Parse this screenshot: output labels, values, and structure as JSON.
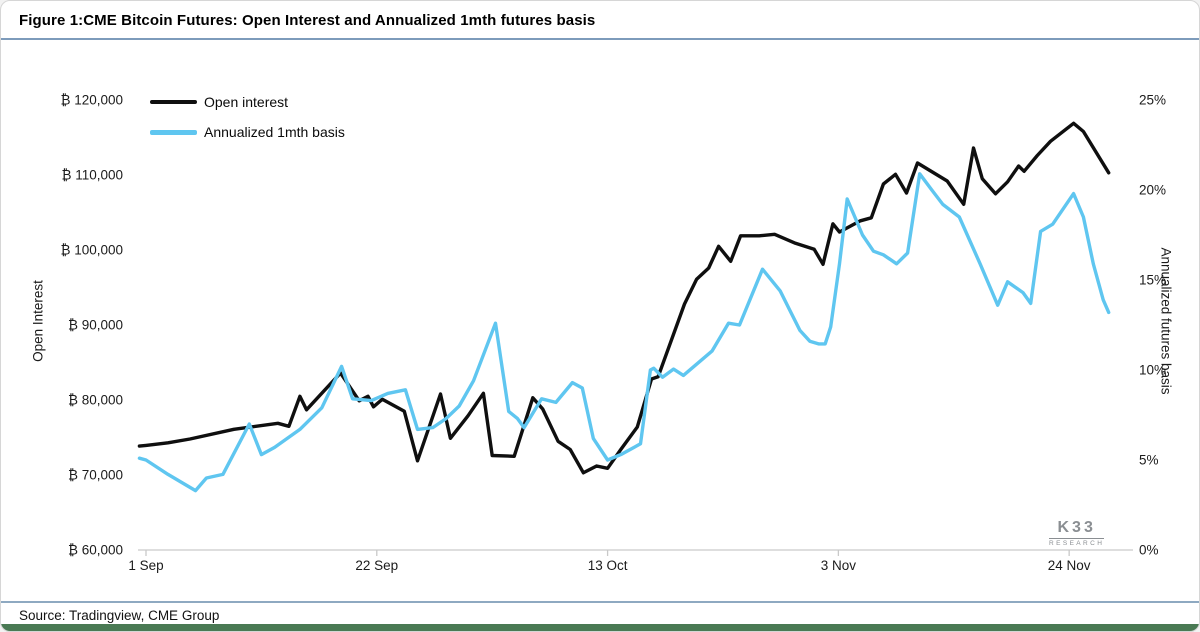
{
  "title": "Figure 1:CME Bitcoin Futures: Open Interest and Annualized 1mth futures basis",
  "source_note": "Source: Tradingview, CME Group",
  "branding": {
    "logo_text": "K33",
    "logo_subtext": "RESEARCH"
  },
  "legend": {
    "open_interest_label": "Open interest",
    "basis_label": "Annualized 1mth basis"
  },
  "colors": {
    "open_interest_line": "#0f0f0f",
    "basis_line": "#5fc6f0",
    "axis_line": "#c9c9c9",
    "title_rule": "#7d9bbb",
    "source_rule": "#8ea9c1",
    "footer_bar": "#4a7a54",
    "logo_gray": "#8a8e92",
    "tick_text": "#1b1b1b"
  },
  "chart_data": {
    "type": "line",
    "title": "CME Bitcoin Futures: Open Interest and Annualized 1mth futures basis",
    "grid": false,
    "legend_position": "top-left",
    "x_axis": {
      "unit": "date (days after 1 Sep)",
      "tick_labels": [
        "1 Sep",
        "22 Sep",
        "13 Oct",
        "3 Nov",
        "24 Nov"
      ],
      "tick_days": [
        0,
        21,
        42,
        63,
        84
      ],
      "range_days": [
        -0.6,
        87.6
      ]
    },
    "left_axis": {
      "label": "Open Interest",
      "min": 60000,
      "max": 120000,
      "tick_step": 10000,
      "ticks": [
        {
          "label": "₿ 120,000",
          "value": 120000
        },
        {
          "label": "₿ 110,000",
          "value": 110000
        },
        {
          "label": "₿ 100,000",
          "value": 100000
        },
        {
          "label": "₿ 90,000",
          "value": 90000
        },
        {
          "label": "₿ 80,000",
          "value": 80000
        },
        {
          "label": "₿ 70,000",
          "value": 70000
        },
        {
          "label": "₿ 60,000",
          "value": 60000
        }
      ]
    },
    "right_axis": {
      "label": "Annualized futures basis",
      "min": 0,
      "max": 25,
      "tick_step": 5,
      "ticks": [
        {
          "label": "25%",
          "value": 25
        },
        {
          "label": "20%",
          "value": 20
        },
        {
          "label": "15%",
          "value": 15
        },
        {
          "label": "10%",
          "value": 10
        },
        {
          "label": "5%",
          "value": 5
        },
        {
          "label": "0%",
          "value": 0
        }
      ]
    },
    "series": [
      {
        "name": "Open interest",
        "axis": "left",
        "unit": "BTC",
        "points": [
          [
            -0.6,
            73850
          ],
          [
            0,
            73950
          ],
          [
            2,
            74300
          ],
          [
            4,
            74800
          ],
          [
            8,
            76100
          ],
          [
            12,
            76900
          ],
          [
            13,
            76500
          ],
          [
            14,
            80500
          ],
          [
            14.6,
            78700
          ],
          [
            17.7,
            83600
          ],
          [
            19.4,
            79900
          ],
          [
            20.2,
            80500
          ],
          [
            20.7,
            79100
          ],
          [
            21.5,
            80100
          ],
          [
            23.5,
            78500
          ],
          [
            24.7,
            71900
          ],
          [
            26.8,
            80800
          ],
          [
            27.7,
            74900
          ],
          [
            29.3,
            77900
          ],
          [
            30.7,
            80900
          ],
          [
            31.5,
            72600
          ],
          [
            33.5,
            72500
          ],
          [
            35.2,
            80300
          ],
          [
            36.1,
            78800
          ],
          [
            37.5,
            74500
          ],
          [
            38.6,
            73400
          ],
          [
            39.8,
            70300
          ],
          [
            41,
            71200
          ],
          [
            42,
            70900
          ],
          [
            43.2,
            73400
          ],
          [
            44.7,
            76400
          ],
          [
            46,
            82800
          ],
          [
            46.6,
            83100
          ],
          [
            49,
            92800
          ],
          [
            50.1,
            96100
          ],
          [
            51.2,
            97600
          ],
          [
            52.1,
            100500
          ],
          [
            53.2,
            98500
          ],
          [
            54.1,
            101900
          ],
          [
            55.8,
            101900
          ],
          [
            57.2,
            102100
          ],
          [
            59.1,
            100900
          ],
          [
            60.8,
            100100
          ],
          [
            61.6,
            98100
          ],
          [
            62.5,
            103500
          ],
          [
            63.1,
            102400
          ],
          [
            65,
            103900
          ],
          [
            66,
            104300
          ],
          [
            67.1,
            108800
          ],
          [
            68.2,
            110100
          ],
          [
            69.2,
            107600
          ],
          [
            70.2,
            111600
          ],
          [
            71.1,
            110800
          ],
          [
            72.9,
            109200
          ],
          [
            74.4,
            106100
          ],
          [
            75.3,
            113600
          ],
          [
            76.1,
            109500
          ],
          [
            77.3,
            107500
          ],
          [
            78.4,
            109100
          ],
          [
            79.4,
            111200
          ],
          [
            79.9,
            110500
          ],
          [
            81.1,
            112600
          ],
          [
            82.3,
            114500
          ],
          [
            84.4,
            116900
          ],
          [
            85.3,
            115800
          ],
          [
            87.6,
            110300
          ]
        ]
      },
      {
        "name": "Annualized 1mth basis",
        "axis": "right",
        "unit": "%",
        "points": [
          [
            -0.6,
            5.1
          ],
          [
            0,
            5.0
          ],
          [
            2,
            4.2
          ],
          [
            4.5,
            3.3
          ],
          [
            5.5,
            4.0
          ],
          [
            7,
            4.2
          ],
          [
            9.4,
            7.0
          ],
          [
            10.5,
            5.3
          ],
          [
            11.7,
            5.7
          ],
          [
            14,
            6.7
          ],
          [
            16,
            7.9
          ],
          [
            17.8,
            10.2
          ],
          [
            18.8,
            8.4
          ],
          [
            20.5,
            8.3
          ],
          [
            22,
            8.7
          ],
          [
            23.6,
            8.9
          ],
          [
            24.7,
            6.7
          ],
          [
            26.1,
            6.8
          ],
          [
            27.3,
            7.3
          ],
          [
            28.5,
            8.0
          ],
          [
            29.8,
            9.4
          ],
          [
            31.8,
            12.6
          ],
          [
            33,
            7.7
          ],
          [
            33.8,
            7.3
          ],
          [
            34.4,
            6.8
          ],
          [
            36,
            8.4
          ],
          [
            37.3,
            8.2
          ],
          [
            38.8,
            9.3
          ],
          [
            39.7,
            9.0
          ],
          [
            40.7,
            6.2
          ],
          [
            42,
            5.0
          ],
          [
            43.2,
            5.3
          ],
          [
            45,
            5.9
          ],
          [
            45.9,
            10.0
          ],
          [
            46.2,
            10.1
          ],
          [
            47,
            9.6
          ],
          [
            48,
            10.05
          ],
          [
            48.9,
            9.7
          ],
          [
            51.5,
            11.05
          ],
          [
            53,
            12.6
          ],
          [
            54,
            12.5
          ],
          [
            56.1,
            15.6
          ],
          [
            57.7,
            14.4
          ],
          [
            58.6,
            13.3
          ],
          [
            59.5,
            12.2
          ],
          [
            60.4,
            11.6
          ],
          [
            61.2,
            11.45
          ],
          [
            61.8,
            11.45
          ],
          [
            62.3,
            12.4
          ],
          [
            63.1,
            15.9
          ],
          [
            63.8,
            19.5
          ],
          [
            65.2,
            17.5
          ],
          [
            66.2,
            16.6
          ],
          [
            67.1,
            16.4
          ],
          [
            68.3,
            15.9
          ],
          [
            69.3,
            16.5
          ],
          [
            70.4,
            20.9
          ],
          [
            71.5,
            20.0
          ],
          [
            72.5,
            19.2
          ],
          [
            74,
            18.5
          ],
          [
            75.9,
            15.9
          ],
          [
            77.5,
            13.6
          ],
          [
            78.4,
            14.9
          ],
          [
            79.8,
            14.3
          ],
          [
            80.5,
            13.7
          ],
          [
            81.4,
            17.7
          ],
          [
            82.5,
            18.1
          ],
          [
            84.4,
            19.8
          ],
          [
            85.3,
            18.5
          ],
          [
            86.2,
            15.9
          ],
          [
            87.1,
            13.9
          ],
          [
            87.6,
            13.2
          ]
        ]
      }
    ]
  }
}
